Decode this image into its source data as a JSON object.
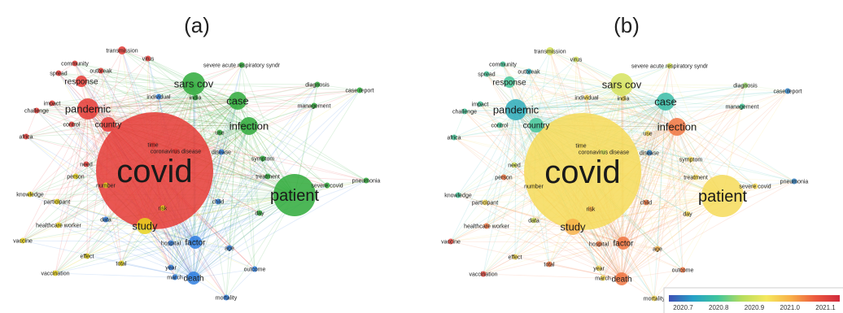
{
  "panels": [
    {
      "label": "(a)"
    },
    {
      "label": "(b)"
    }
  ],
  "terms": [
    {
      "id": "covid",
      "text": "covid",
      "size": "xl",
      "cluster": "red",
      "year": 2020.95
    },
    {
      "id": "patient",
      "text": "patient",
      "size": "l",
      "cluster": "green",
      "year": 2020.95
    },
    {
      "id": "pandemic",
      "text": "pandemic",
      "size": "m",
      "cluster": "red",
      "year": 2020.75
    },
    {
      "id": "sarscov",
      "text": "sars cov",
      "size": "m",
      "cluster": "green",
      "year": 2020.9
    },
    {
      "id": "case",
      "text": "case",
      "size": "m",
      "cluster": "green",
      "year": 2020.78
    },
    {
      "id": "infection",
      "text": "infection",
      "size": "m",
      "cluster": "green",
      "year": 2021.05
    },
    {
      "id": "study",
      "text": "study",
      "size": "m",
      "cluster": "yellow",
      "year": 2021.0
    },
    {
      "id": "country",
      "text": "country",
      "size": "s",
      "cluster": "red",
      "year": 2020.8
    },
    {
      "id": "death",
      "text": "death",
      "size": "s",
      "cluster": "blue",
      "year": 2021.05
    },
    {
      "id": "factor",
      "text": "factor",
      "size": "s",
      "cluster": "blue",
      "year": 2021.05
    },
    {
      "id": "transmission",
      "text": "transmission",
      "size": "xs",
      "cluster": "red",
      "year": 2020.9
    },
    {
      "id": "virus",
      "text": "virus",
      "size": "xs",
      "cluster": "red",
      "year": 2020.9
    },
    {
      "id": "community",
      "text": "community",
      "size": "xs",
      "cluster": "red",
      "year": 2020.8
    },
    {
      "id": "spread",
      "text": "spread",
      "size": "xs",
      "cluster": "red",
      "year": 2020.8
    },
    {
      "id": "outbreak",
      "text": "outbreak",
      "size": "xs",
      "cluster": "red",
      "year": 2020.75
    },
    {
      "id": "response",
      "text": "response",
      "size": "s",
      "cluster": "red",
      "year": 2020.8
    },
    {
      "id": "sars",
      "text": "severe acute respiratory syndr",
      "size": "xs",
      "cluster": "green",
      "year": 2020.9
    },
    {
      "id": "diagnosis",
      "text": "diagnosis",
      "size": "xs",
      "cluster": "green",
      "year": 2020.85
    },
    {
      "id": "casereport",
      "text": "case report",
      "size": "xs",
      "cluster": "green",
      "year": 2020.7
    },
    {
      "id": "individual",
      "text": "individual",
      "size": "xs",
      "cluster": "blue",
      "year": 2020.95
    },
    {
      "id": "india",
      "text": "india",
      "size": "xs",
      "cluster": "green",
      "year": 2020.95
    },
    {
      "id": "management",
      "text": "management",
      "size": "xs",
      "cluster": "green",
      "year": 2020.8
    },
    {
      "id": "impact",
      "text": "impact",
      "size": "xs",
      "cluster": "red",
      "year": 2020.8
    },
    {
      "id": "challenge",
      "text": "challenge",
      "size": "xs",
      "cluster": "red",
      "year": 2020.8
    },
    {
      "id": "control",
      "text": "control",
      "size": "xs",
      "cluster": "red",
      "year": 2020.8
    },
    {
      "id": "use",
      "text": "use",
      "size": "xs",
      "cluster": "green",
      "year": 2020.95
    },
    {
      "id": "africa",
      "text": "africa",
      "size": "xs",
      "cluster": "red",
      "year": 2020.8
    },
    {
      "id": "time",
      "text": "time",
      "size": "xs",
      "cluster": "red",
      "year": 2020.95
    },
    {
      "id": "coronavirusdisease",
      "text": "coronavirus disease",
      "size": "xs",
      "cluster": "red",
      "year": 2020.9
    },
    {
      "id": "disease",
      "text": "disease",
      "size": "xs",
      "cluster": "blue",
      "year": 2020.7
    },
    {
      "id": "symptom",
      "text": "symptom",
      "size": "xs",
      "cluster": "green",
      "year": 2020.95
    },
    {
      "id": "need",
      "text": "need",
      "size": "xs",
      "cluster": "red",
      "year": 2020.9
    },
    {
      "id": "treatment",
      "text": "treatment",
      "size": "xs",
      "cluster": "green",
      "year": 2020.95
    },
    {
      "id": "pneumonia",
      "text": "pneumonia",
      "size": "xs",
      "cluster": "green",
      "year": 2020.7
    },
    {
      "id": "severecovid",
      "text": "severe covid",
      "size": "xs",
      "cluster": "green",
      "year": 2020.95
    },
    {
      "id": "person",
      "text": "person",
      "size": "xs",
      "cluster": "yellow",
      "year": 2021.05
    },
    {
      "id": "number",
      "text": "number",
      "size": "xs",
      "cluster": "yellow",
      "year": 2020.95
    },
    {
      "id": "knowledge",
      "text": "knowledge",
      "size": "xs",
      "cluster": "yellow",
      "year": 2020.8
    },
    {
      "id": "participant",
      "text": "participant",
      "size": "xs",
      "cluster": "yellow",
      "year": 2020.95
    },
    {
      "id": "risk",
      "text": "risk",
      "size": "xs",
      "cluster": "yellow",
      "year": 2021.0
    },
    {
      "id": "child",
      "text": "child",
      "size": "xs",
      "cluster": "blue",
      "year": 2021.05
    },
    {
      "id": "day",
      "text": "day",
      "size": "xs",
      "cluster": "green",
      "year": 2020.95
    },
    {
      "id": "hcw",
      "text": "healthcare worker",
      "size": "xs",
      "cluster": "yellow",
      "year": 2021.05
    },
    {
      "id": "data",
      "text": "data",
      "size": "xs",
      "cluster": "blue",
      "year": 2020.9
    },
    {
      "id": "vaccine",
      "text": "vaccine",
      "size": "xs",
      "cluster": "yellow",
      "year": 2021.1
    },
    {
      "id": "hospital",
      "text": "hospital",
      "size": "xs",
      "cluster": "blue",
      "year": 2021.05
    },
    {
      "id": "age",
      "text": "age",
      "size": "xs",
      "cluster": "blue",
      "year": 2021.0
    },
    {
      "id": "effect",
      "text": "effect",
      "size": "xs",
      "cluster": "yellow",
      "year": 2020.95
    },
    {
      "id": "total",
      "text": "total",
      "size": "xs",
      "cluster": "yellow",
      "year": 2021.05
    },
    {
      "id": "year",
      "text": "year",
      "size": "xs",
      "cluster": "blue",
      "year": 2020.95
    },
    {
      "id": "march",
      "text": "march",
      "size": "xs",
      "cluster": "blue",
      "year": 2020.95
    },
    {
      "id": "outcome",
      "text": "outcome",
      "size": "xs",
      "cluster": "blue",
      "year": 2021.05
    },
    {
      "id": "vaccination",
      "text": "vaccination",
      "size": "xs",
      "cluster": "yellow",
      "year": 2021.1
    },
    {
      "id": "mortality",
      "text": "mortality",
      "size": "xs",
      "cluster": "blue",
      "year": 2020.95
    }
  ],
  "cluster_colors": {
    "red": "#e53935",
    "green": "#2eaa3a",
    "blue": "#2f7fe0",
    "yellow": "#e8d21d"
  },
  "overlay_legend": {
    "ticks": [
      "2020.7",
      "2020.8",
      "2020.9",
      "2021.0",
      "2021.1"
    ],
    "range": [
      2020.66,
      2021.14
    ],
    "colors": [
      "#3f4fb4",
      "#26a1c8",
      "#3fc59c",
      "#b7dd5d",
      "#f5e85e",
      "#f8b049",
      "#ec5a3f",
      "#d02a3d"
    ]
  }
}
